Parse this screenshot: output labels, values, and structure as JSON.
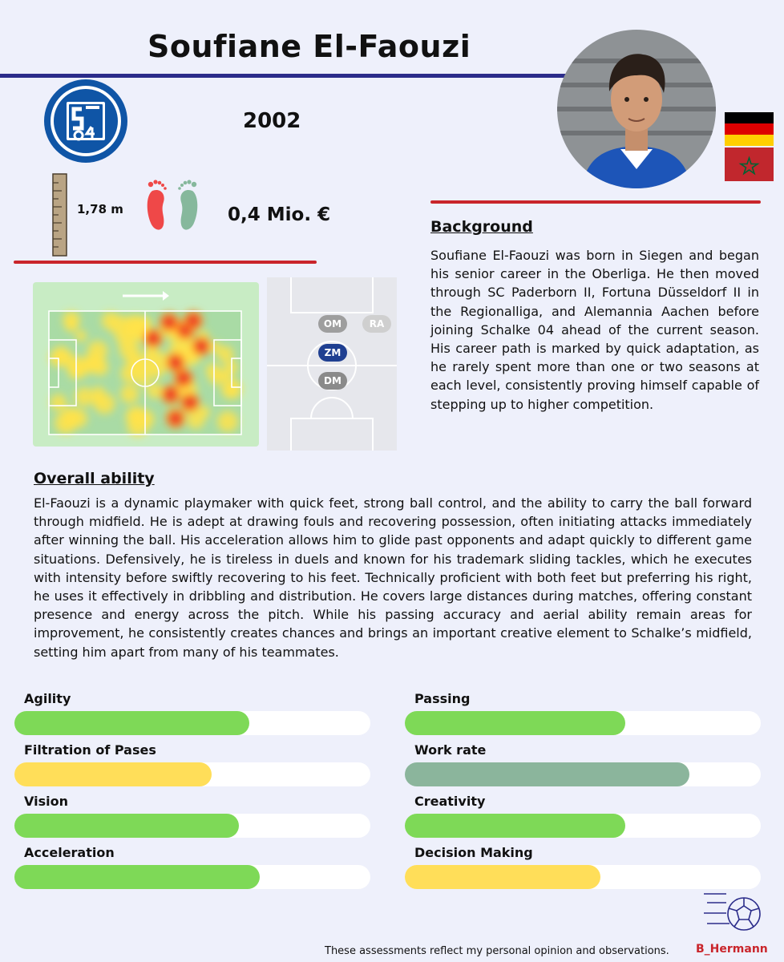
{
  "player": {
    "name": "Soufiane El-Faouzi",
    "birth_year": "2002",
    "height": "1,78 m",
    "market_value": "0,4 Mio. €",
    "preferred_foot": "right"
  },
  "club": {
    "logo_text": "S04"
  },
  "flags": [
    "germany-flag",
    "morocco-flag"
  ],
  "positions": [
    {
      "label": "OM",
      "active": false
    },
    {
      "label": "RA",
      "active": false
    },
    {
      "label": "ZM",
      "active": true
    },
    {
      "label": "DM",
      "active": false
    }
  ],
  "background": {
    "heading": "Background",
    "text": "Soufiane El-Faouzi was born in Siegen and began his senior career in the Oberliga. He then moved through SC Paderborn II, Fortuna Düsseldorf II in the Regionalliga, and Alemannia Aachen before joining Schalke 04 ahead of the current season. His career path is marked by quick adaptation, as he rarely spent more than one or two seasons at each level, consistently proving himself capable of stepping up to higher competition."
  },
  "overall": {
    "heading": "Overall ability",
    "text": "El-Faouzi is a dynamic playmaker with quick feet, strong ball control, and the ability to carry the ball forward through midfield. He is adept at drawing fouls and recovering possession, often initiating attacks immediately after winning the ball. His acceleration allows him to glide past opponents and adapt quickly to different game situations. Defensively, he is tireless in duels and known for his trademark sliding tackles, which he executes with intensity before swiftly recovering to his feet. Technically proficient with both feet but preferring his right, he uses it effectively in dribbling and distribution. He covers large distances during matches, offering constant presence and energy across the pitch. While his passing accuracy and aerial ability remain areas for improvement, he consistently creates chances and brings an important creative element to Schalke’s midfield, setting him apart from many of his teammates."
  },
  "ratings_left": [
    {
      "label": "Agility",
      "fraction": 0.66,
      "color": "#7ed957"
    },
    {
      "label": "Filtration of Pases",
      "fraction": 0.555,
      "color": "#ffde59"
    },
    {
      "label": "Vision",
      "fraction": 0.63,
      "color": "#7ed957"
    },
    {
      "label": "Acceleration",
      "fraction": 0.69,
      "color": "#7ed957"
    }
  ],
  "ratings_right": [
    {
      "label": "Passing",
      "fraction": 0.62,
      "color": "#7ed957"
    },
    {
      "label": "Work rate",
      "fraction": 0.8,
      "color": "#8bb59c"
    },
    {
      "label": "Creativity",
      "fraction": 0.62,
      "color": "#7ed957"
    },
    {
      "label": "Decision Making",
      "fraction": 0.55,
      "color": "#ffde59"
    }
  ],
  "footer": {
    "disclaimer": "These assessments reflect my personal opinion and observations.",
    "brand": "B_Hermann"
  },
  "colors": {
    "accent_blue": "#2b2c8a",
    "accent_red": "#c9252b",
    "schalke_blue": "#0f55a6"
  }
}
